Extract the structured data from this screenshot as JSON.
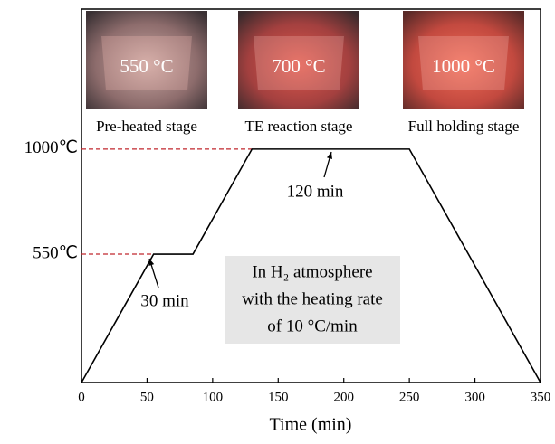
{
  "chart_data": {
    "type": "line",
    "x_label": "Time (min)",
    "x": [
      0,
      55,
      85,
      130,
      250,
      350
    ],
    "values": [
      0,
      550,
      550,
      1000,
      1000,
      0
    ],
    "color": "#000000",
    "xlim": [
      0,
      350
    ],
    "xticks": [
      0,
      50,
      100,
      150,
      200,
      250,
      300,
      350
    ],
    "ylim": [
      0,
      1600
    ],
    "yticks": [
      {
        "value": 550,
        "label": "550℃"
      },
      {
        "value": 1000,
        "label": "1000℃"
      }
    ],
    "guide_color": "#c0272d",
    "annotations": [
      "30 min",
      "120 min"
    ],
    "note": [
      "In H₂ atmosphere",
      "with the heating rate",
      "of 10 °C/min"
    ],
    "insets": [
      {
        "label": "550 °C",
        "caption": "Pre-heated stage"
      },
      {
        "label": "700 °C",
        "caption": "TE reaction stage"
      },
      {
        "label": "1000 °C",
        "caption": "Full holding stage"
      }
    ]
  }
}
